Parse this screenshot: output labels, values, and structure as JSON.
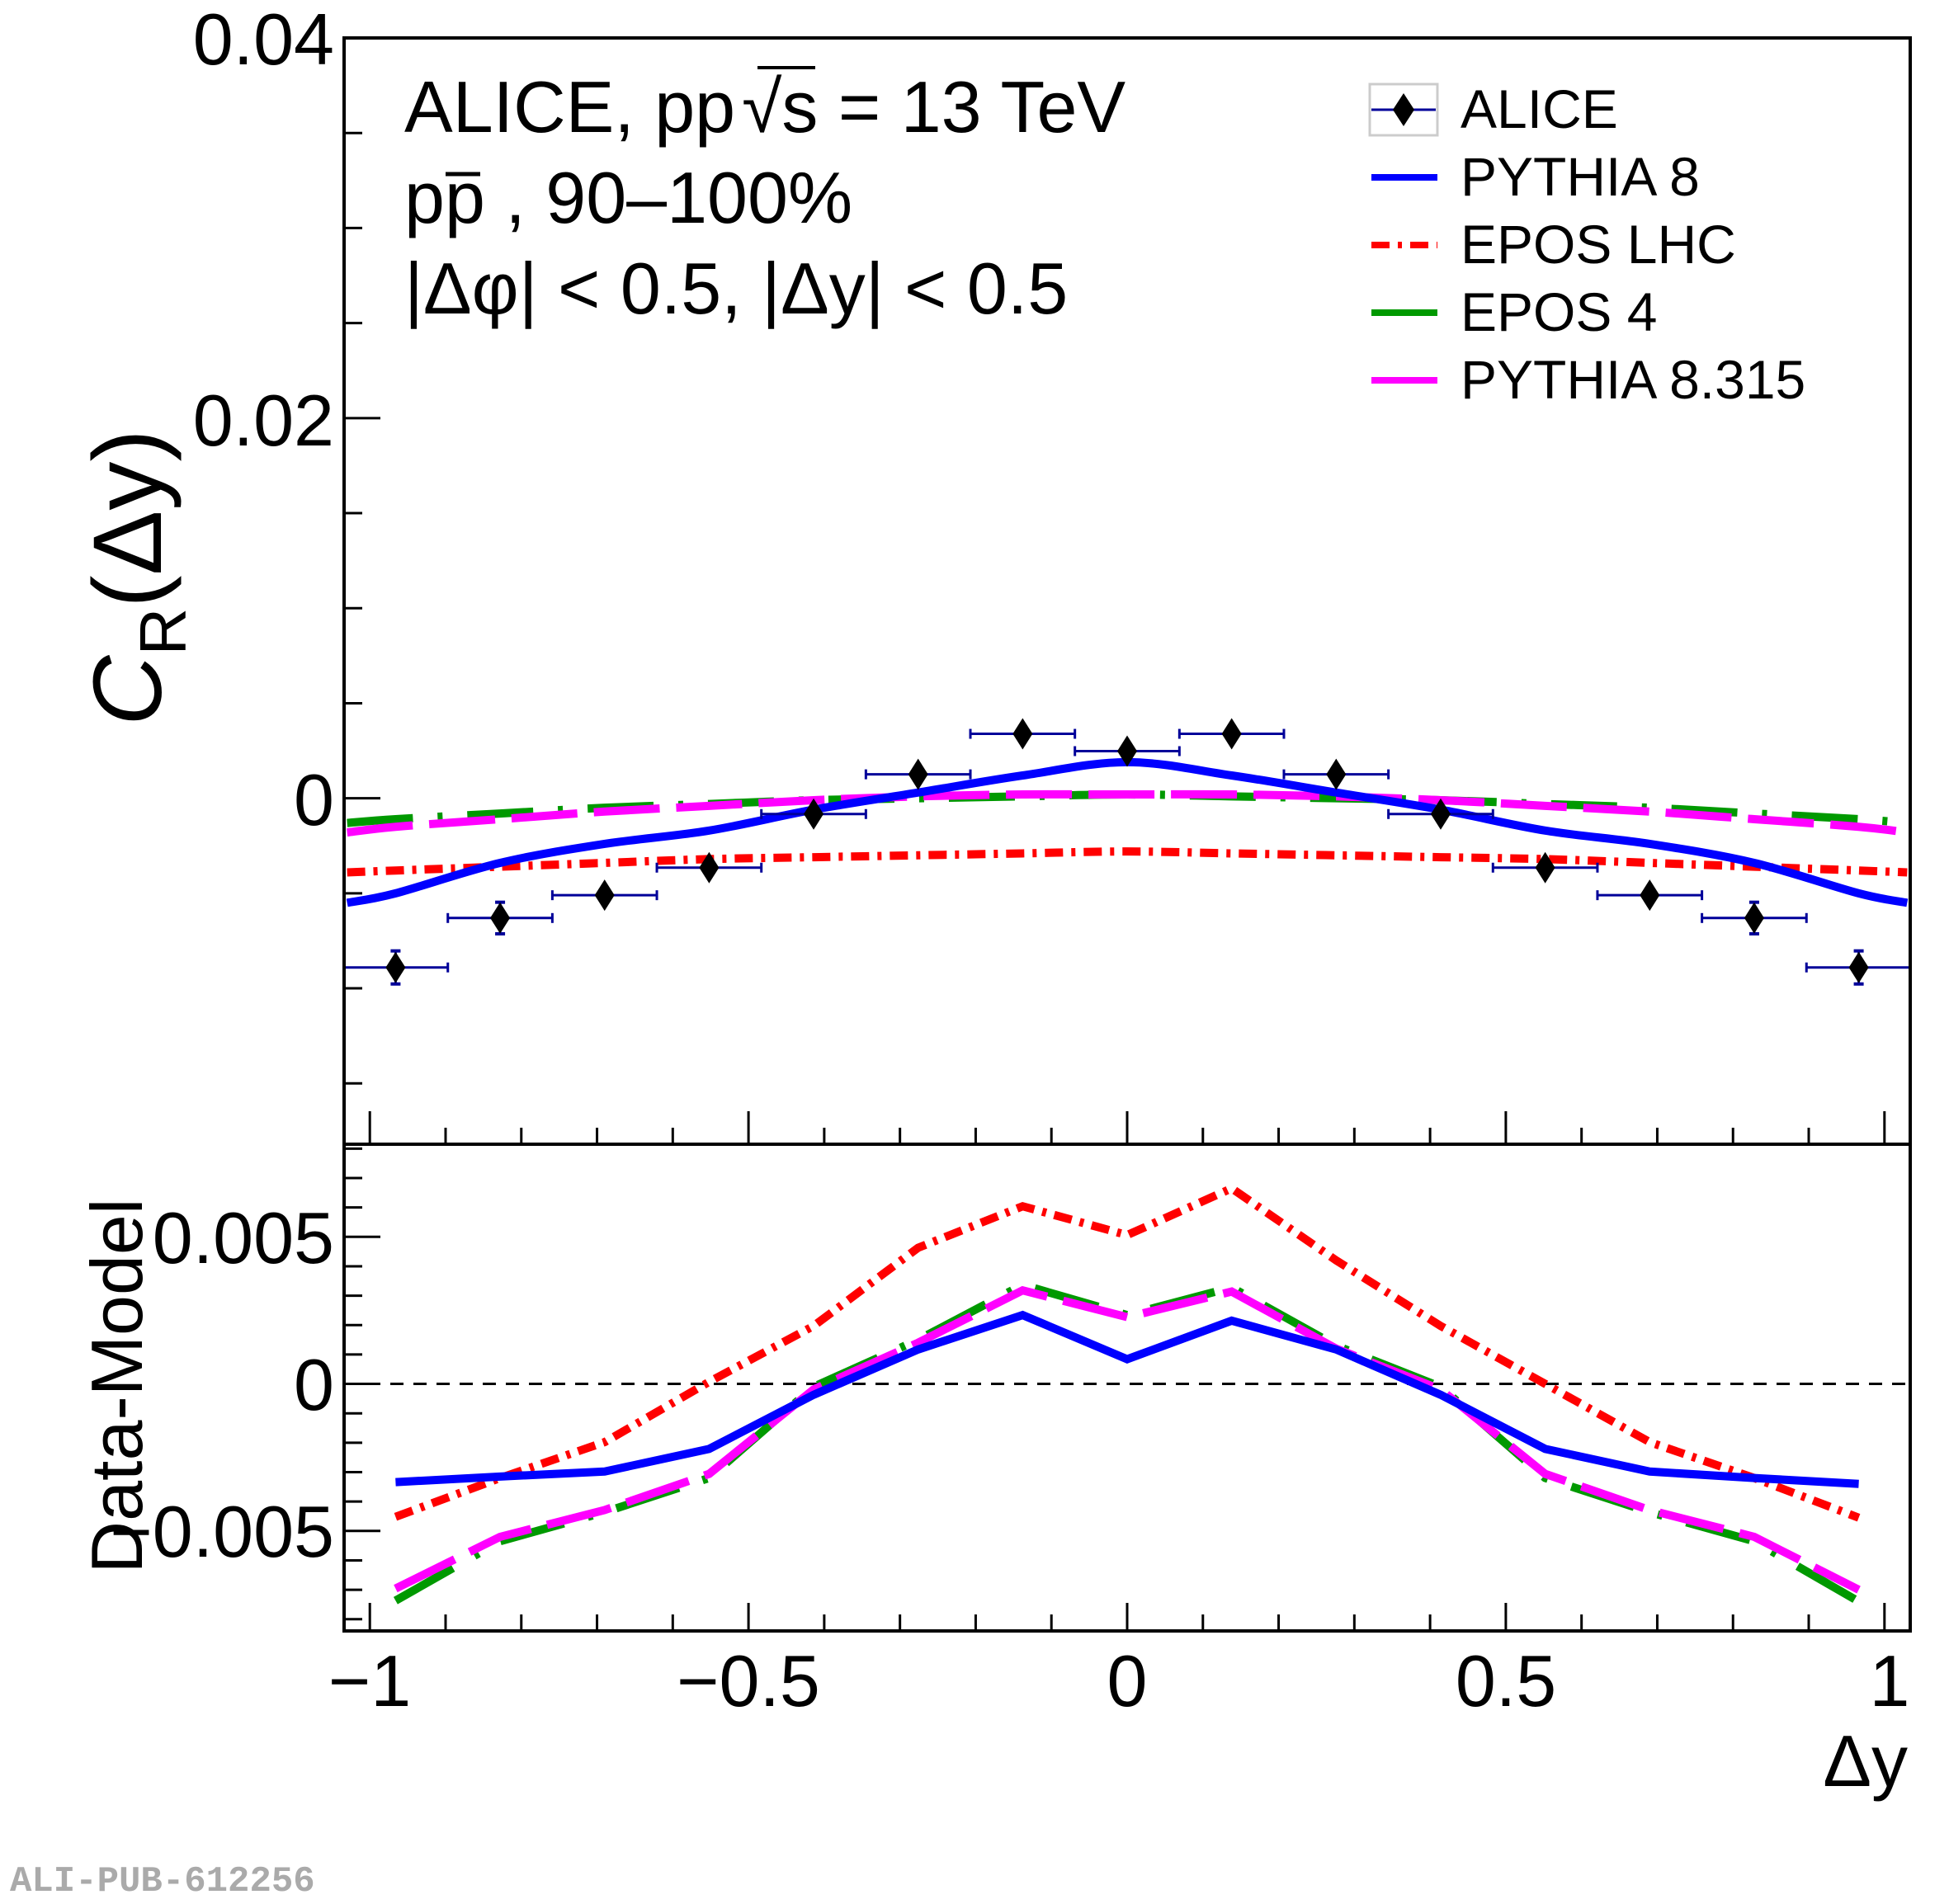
{
  "chart_data": [
    {
      "panel": "upper",
      "type": "scatter",
      "title": "",
      "annotations": [
        "ALICE, pp √s = 13 TeV",
        "pp̅ , 90–100%",
        "|Δφ| < 0.5, |Δy| < 0.5"
      ],
      "xlabel": "Δy",
      "ylabel": "C_R(Δy)",
      "xlim": [
        -1.034,
        1.034
      ],
      "ylim": [
        -0.0182,
        0.04
      ],
      "yticks": [
        0,
        0.02,
        0.04
      ],
      "ytick_labels": [
        "0",
        "0.02",
        "0.04"
      ],
      "grid": false,
      "legend_position": "top-right",
      "data_series": {
        "name": "ALICE",
        "x": [
          -0.966,
          -0.828,
          -0.69,
          -0.552,
          -0.414,
          -0.276,
          -0.138,
          0.0,
          0.138,
          0.276,
          0.414,
          0.552,
          0.69,
          0.828,
          0.966
        ],
        "y": [
          -0.0089,
          -0.0063,
          -0.0051,
          -0.00365,
          -0.00083,
          0.00126,
          0.00339,
          0.00248,
          0.00339,
          0.00126,
          -0.00083,
          -0.00365,
          -0.0051,
          -0.0063,
          -0.0089
        ],
        "xerr": 0.069,
        "yerr": [
          0.00087,
          0.00083,
          0.0001,
          0.0001,
          0.0001,
          0.0001,
          0.0001,
          0.0001,
          0.0001,
          0.0001,
          0.0001,
          0.0001,
          0.0001,
          0.00083,
          0.00087
        ]
      },
      "model_x": [
        -1.03,
        -0.966,
        -0.828,
        -0.69,
        -0.552,
        -0.414,
        -0.276,
        -0.138,
        0.0,
        0.138,
        0.276,
        0.414,
        0.552,
        0.69,
        0.828,
        0.966,
        1.03
      ],
      "series": [
        {
          "name": "PYTHIA 8",
          "color": "#0000ff",
          "style": "solid",
          "values": [
            -0.0055,
            -0.005,
            -0.0034,
            -0.0024,
            -0.0017,
            -0.0006,
            0.0003,
            0.0012,
            0.0019,
            0.0012,
            0.0003,
            -0.0006,
            -0.0017,
            -0.0024,
            -0.0034,
            -0.005,
            -0.0055
          ]
        },
        {
          "name": "EPOS LHC",
          "color": "#ff0000",
          "style": "dash-dot",
          "values": [
            -0.0039,
            -0.0038,
            -0.0036,
            -0.0034,
            -0.0032,
            -0.0031,
            -0.003,
            -0.0029,
            -0.0028,
            -0.0029,
            -0.003,
            -0.0031,
            -0.0032,
            -0.0034,
            -0.0036,
            -0.0038,
            -0.0039
          ]
        },
        {
          "name": "EPOS 4",
          "color": "#009900",
          "style": "long-dash-dot",
          "values": [
            -0.0013,
            -0.0011,
            -0.0008,
            -0.0005,
            -0.0003,
            -0.0001,
            0.0,
            0.0001,
            0.0002,
            0.0001,
            0.0,
            -0.0001,
            -0.0003,
            -0.0005,
            -0.0008,
            -0.0011,
            -0.0013
          ]
        },
        {
          "name": "PYTHIA 8.315",
          "color": "#ff00ff",
          "style": "long-dash",
          "values": [
            -0.0018,
            -0.0015,
            -0.0011,
            -0.0007,
            -0.0004,
            -0.0001,
            0.0001,
            0.0002,
            0.0002,
            0.0002,
            0.0001,
            -0.0001,
            -0.0004,
            -0.0007,
            -0.0011,
            -0.0015,
            -0.0018
          ]
        }
      ]
    },
    {
      "panel": "lower",
      "type": "line",
      "xlabel": "Δy",
      "ylabel": "Data-Model",
      "xlim": [
        -1.034,
        1.034
      ],
      "ylim": [
        -0.0084,
        0.00815
      ],
      "yticks": [
        -0.005,
        0,
        0.005
      ],
      "ytick_labels": [
        "−0.005",
        "0",
        "0.005"
      ],
      "xticks": [
        -1,
        -0.5,
        0,
        0.5,
        1
      ],
      "xtick_labels": [
        "−1",
        "−0.5",
        "0",
        "0.5",
        "1"
      ],
      "reference_line": 0,
      "x": [
        -0.966,
        -0.828,
        -0.69,
        -0.552,
        -0.414,
        -0.276,
        -0.138,
        0.0,
        0.138,
        0.276,
        0.414,
        0.552,
        0.69,
        0.828,
        0.966
      ],
      "series": [
        {
          "name": "PYTHIA 8",
          "color": "#0000ff",
          "style": "solid",
          "values": [
            -0.00334,
            -0.00315,
            -0.00298,
            -0.00221,
            -0.00037,
            0.00117,
            0.00234,
            0.00084,
            0.00215,
            0.00117,
            -0.00037,
            -0.00221,
            -0.00298,
            -0.0032,
            -0.0034
          ]
        },
        {
          "name": "EPOS LHC",
          "color": "#ff0000",
          "style": "dash-dot",
          "values": [
            -0.00452,
            -0.0032,
            -0.00198,
            7e-05,
            0.00197,
            0.00463,
            0.00604,
            0.00506,
            0.00665,
            0.0042,
            0.00197,
            0.0,
            -0.00198,
            -0.0032,
            -0.00455
          ]
        },
        {
          "name": "EPOS 4",
          "color": "#009900",
          "style": "long-dash-dot",
          "values": [
            -0.00737,
            -0.00535,
            -0.00436,
            -0.0032,
            -0.0001,
            0.0015,
            0.00337,
            0.00234,
            0.00328,
            0.0013,
            -0.0001,
            -0.0032,
            -0.00436,
            -0.00535,
            -0.0074
          ]
        },
        {
          "name": "PYTHIA 8.315",
          "color": "#ff00ff",
          "style": "long-dash",
          "values": [
            -0.00696,
            -0.0052,
            -0.00429,
            -0.00306,
            -0.00019,
            0.0014,
            0.00318,
            0.00227,
            0.00314,
            0.0012,
            -0.00019,
            -0.00306,
            -0.00429,
            -0.0052,
            -0.007
          ]
        }
      ]
    }
  ],
  "legend": [
    {
      "label": "ALICE",
      "marker": "diamond",
      "color": "#000000",
      "bar_color": "#000099"
    },
    {
      "label": "PYTHIA 8",
      "color": "#0000ff",
      "style": "solid"
    },
    {
      "label": "EPOS LHC",
      "color": "#ff0000",
      "style": "dash-dot"
    },
    {
      "label": "EPOS 4",
      "color": "#009900",
      "style": "solid"
    },
    {
      "label": "PYTHIA 8.315",
      "color": "#ff00ff",
      "style": "solid"
    }
  ],
  "text": {
    "line1_prefix": "ALICE, pp",
    "line1_sqrt": "√s",
    "line1_suffix": " = 13 TeV",
    "line2_p": "p",
    "line2_pbar": "p",
    "line2_rest": " , 90–100%",
    "line3": "|Δφ| < 0.5, |Δy| < 0.5",
    "ylabel_upper_main": "C",
    "ylabel_upper_sub": "R",
    "ylabel_upper_arg": "(Δy)",
    "ylabel_lower": "Data-Model",
    "xlabel": "Δy",
    "upper_ytick_labels": [
      "0.04",
      "0.02",
      "0"
    ],
    "footer": "ALI-PUB-612256"
  }
}
